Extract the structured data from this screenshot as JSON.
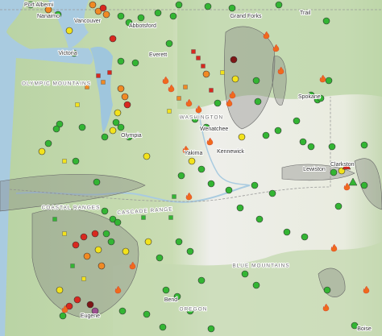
{
  "places": [
    "Port Alberni",
    "Nanaimo",
    "Vancouver",
    "Abbotsford",
    "Grand Forks",
    "Trail",
    "Victoria",
    "Everett",
    "Wenatchee",
    "Olympia",
    "Spokane",
    "Yakima",
    "Kennewick",
    "Lewiston",
    "Clarkston",
    "Eugene",
    "Bend",
    "Boise"
  ],
  "regions": [
    "OLYMPIC MOUNTAINS",
    "WASHINGTON",
    "COASTAL RANGES",
    "CASCADE RANGE",
    "BLUE MOUNTAINS",
    "OREGON"
  ]
}
